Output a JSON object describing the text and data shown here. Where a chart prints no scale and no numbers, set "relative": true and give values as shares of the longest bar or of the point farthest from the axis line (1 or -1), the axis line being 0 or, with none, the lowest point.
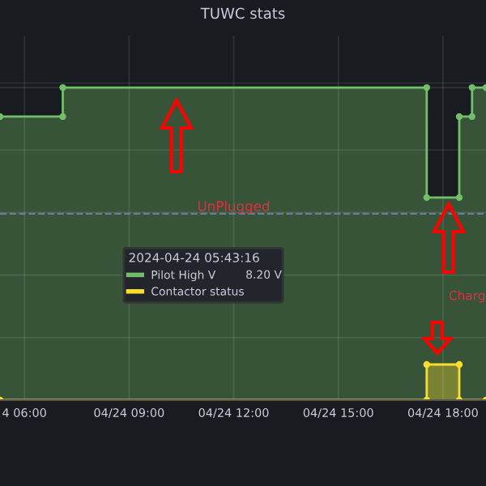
{
  "chart_data": {
    "type": "area",
    "title": "TUWC stats",
    "relative": true,
    "legend_title": "2024-04-24 05:43:16",
    "legend": "center",
    "grid": true,
    "marker": "circle",
    "xlim": [
      "2024-04-24T05:18",
      "2024-04-24T19:14"
    ],
    "xticks": [
      {
        "value": "2024-04-24T06:00",
        "label": "4 06:00"
      },
      {
        "value": "2024-04-24T09:00",
        "label": "04/24 09:00"
      },
      {
        "value": "2024-04-24T12:00",
        "label": "04/24 12:00"
      },
      {
        "value": "2024-04-24T15:00",
        "label": "04/24 15:00"
      },
      {
        "value": "2024-04-24T18:00",
        "label": "04/24 18:00"
      }
    ],
    "series": [
      {
        "name": "Pilot High V",
        "color": "#73bf69",
        "x": [
          "2024-04-24T05:18",
          "2024-04-24T07:06",
          "2024-04-24T07:06",
          "2024-04-24T17:32",
          "2024-04-24T17:32",
          "2024-04-24T18:28",
          "2024-04-24T18:28",
          "2024-04-24T18:50",
          "2024-04-24T18:50",
          "2024-04-24T19:14"
        ],
        "values": [
          0.907,
          0.907,
          1.0,
          1.0,
          0.648,
          0.648,
          0.907,
          0.907,
          1.0,
          1.0
        ]
      },
      {
        "name": "Contactor status",
        "color": "#fade2a",
        "x": [
          "2024-04-24T05:18",
          "2024-04-24T17:32",
          "2024-04-24T17:32",
          "2024-04-24T18:28",
          "2024-04-24T18:28",
          "2024-04-24T19:14"
        ],
        "values": [
          0,
          0,
          0.114,
          0.114,
          0,
          0
        ]
      }
    ],
    "ref_lines": [
      {
        "axis": "y",
        "value": 0.596,
        "color": "#6c7a9c",
        "line_style": "dashed"
      }
    ],
    "annotations": [
      "8.20 V",
      {
        "text": "UnPlugged",
        "x": "2024-04-24T12:00",
        "y": 0.596
      },
      "Charg"
    ]
  }
}
